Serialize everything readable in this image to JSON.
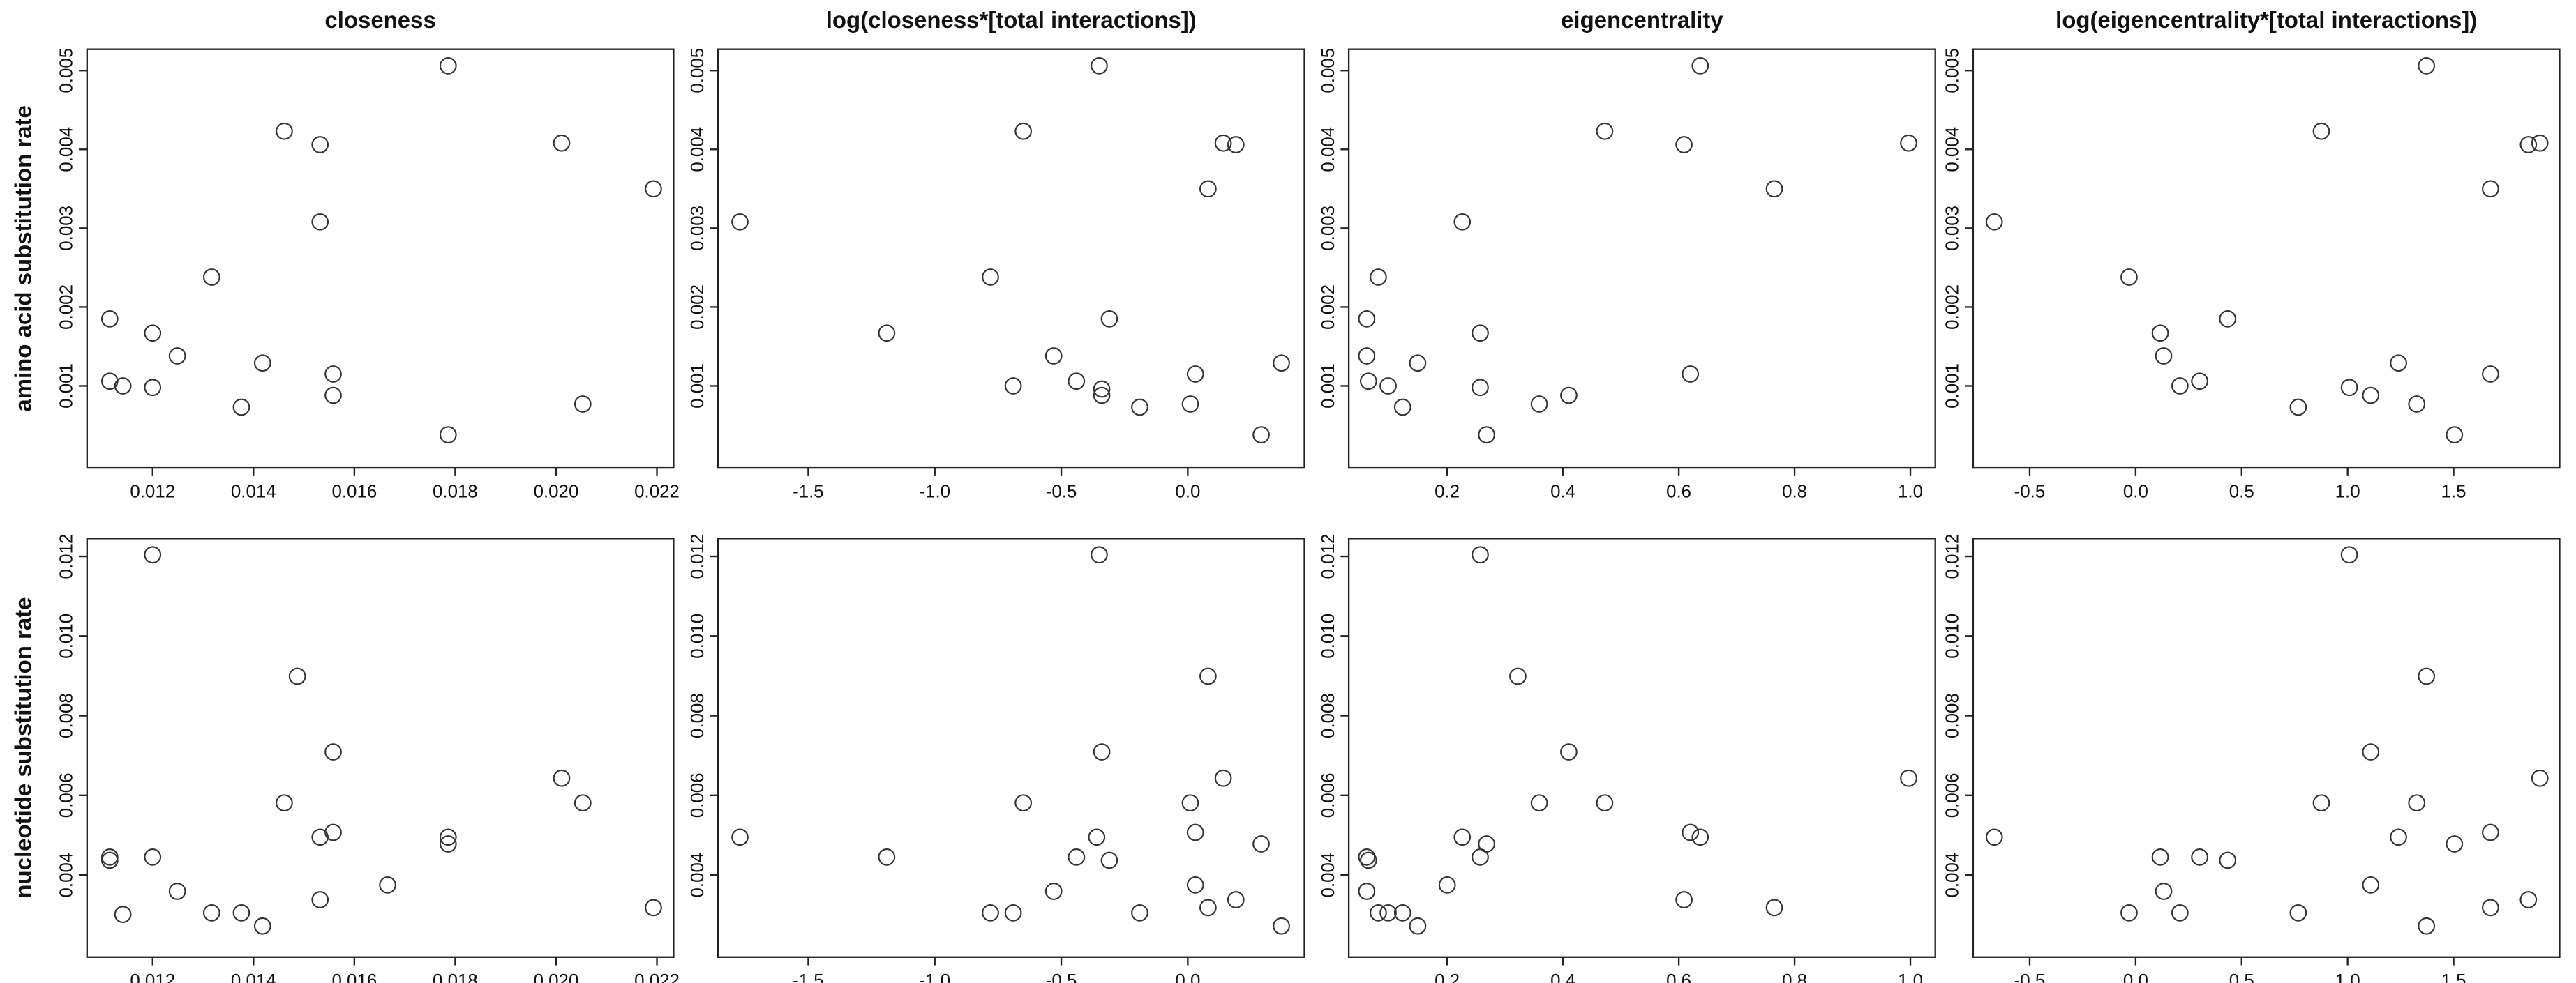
{
  "chart_data": [
    {
      "type": "scatter",
      "title": "closeness",
      "ylabel": "amino acid substitution rate",
      "x": [
        0.01115,
        0.01115,
        0.01141,
        0.012,
        0.012,
        0.01249,
        0.01317,
        0.01376,
        0.01418,
        0.01461,
        0.01532,
        0.01532,
        0.01558,
        0.01558,
        0.01786,
        0.01786,
        0.02011,
        0.02053,
        0.02193
      ],
      "values": [
        0.00185,
        0.00106,
        0.001,
        0.00167,
        0.00098,
        0.00138,
        0.00238,
        0.00073,
        0.00129,
        0.00423,
        0.00406,
        0.00308,
        0.00115,
        0.00088,
        0.00506,
        0.00038,
        0.00408,
        0.00077,
        0.0035
      ],
      "xlim": [
        0.0107,
        0.02233
      ],
      "ylim": [
        -4e-05,
        0.00527
      ],
      "xticks": [
        0.012,
        0.014,
        0.016,
        0.018,
        {
          "value": 0.02,
          "label": "0.020"
        },
        0.022
      ],
      "yticks": [
        0.001,
        0.002,
        0.003,
        0.004,
        0.005
      ]
    },
    {
      "type": "scatter",
      "title": "log(closeness*[total interactions])",
      "x": [
        -1.77,
        -1.19,
        -0.78,
        -0.69,
        -0.65,
        -0.53,
        -0.44,
        -0.34,
        -0.34,
        -0.31,
        -0.19,
        -0.35,
        0.01,
        0.03,
        0.08,
        0.14,
        0.19,
        0.29,
        0.37
      ],
      "values": [
        0.00308,
        0.00167,
        0.00238,
        0.001,
        0.00423,
        0.00138,
        0.00106,
        0.00096,
        0.00088,
        0.00185,
        0.00073,
        0.00506,
        0.00077,
        0.00115,
        0.0035,
        0.00408,
        0.00406,
        0.00038,
        0.00129
      ],
      "xlim": [
        -1.857,
        0.461
      ],
      "ylim": [
        -4e-05,
        0.00527
      ],
      "xticks": [
        -1.5,
        {
          "value": -1,
          "label": "-1.0"
        },
        -0.5,
        {
          "value": 0,
          "label": "0.0"
        }
      ],
      "yticks": [
        0.001,
        0.002,
        0.003,
        0.004,
        0.005
      ]
    },
    {
      "type": "scatter",
      "title": "eigencentrality",
      "x": [
        0.061,
        0.061,
        0.064,
        0.081,
        0.098,
        0.123,
        0.149,
        0.226,
        0.257,
        0.257,
        0.268,
        0.359,
        0.41,
        0.472,
        0.609,
        0.62,
        0.637,
        0.765,
        0.997
      ],
      "values": [
        0.00185,
        0.00138,
        0.00106,
        0.00238,
        0.001,
        0.00073,
        0.00129,
        0.00308,
        0.00167,
        0.00098,
        0.00038,
        0.00077,
        0.00088,
        0.00423,
        0.00406,
        0.00115,
        0.00506,
        0.0035,
        0.00408
      ],
      "xlim": [
        0.03,
        1.043
      ],
      "ylim": [
        -4e-05,
        0.00527
      ],
      "xticks": [
        0.2,
        0.4,
        0.6,
        0.8,
        {
          "value": 1,
          "label": "1.0"
        }
      ],
      "yticks": [
        0.001,
        0.002,
        0.003,
        0.004,
        0.005
      ]
    },
    {
      "type": "scatter",
      "title": "log(eigencentrality*[total interactions])",
      "x": [
        -0.667,
        -0.031,
        0.116,
        0.132,
        0.209,
        0.302,
        0.434,
        0.767,
        0.876,
        1.008,
        1.109,
        1.24,
        1.372,
        1.326,
        1.504,
        1.674,
        1.674,
        1.853,
        1.907
      ],
      "values": [
        0.00308,
        0.00238,
        0.00167,
        0.00138,
        0.001,
        0.00106,
        0.00185,
        0.00073,
        0.00423,
        0.00098,
        0.00088,
        0.00129,
        0.00506,
        0.00077,
        0.00038,
        0.0035,
        0.00115,
        0.00406,
        0.00408
      ],
      "xlim": [
        -0.767,
        2.0
      ],
      "ylim": [
        -4e-05,
        0.00527
      ],
      "xticks": [
        -0.5,
        {
          "value": 0,
          "label": "0.0"
        },
        0.5,
        {
          "value": 1,
          "label": "1.0"
        },
        1.5
      ],
      "yticks": [
        0.001,
        0.002,
        0.003,
        0.004,
        0.005
      ]
    },
    {
      "type": "scatter",
      "ylabel": "nucleotide substitution rate",
      "x": [
        0.01115,
        0.01115,
        0.01141,
        0.012,
        0.012,
        0.01249,
        0.01317,
        0.01376,
        0.01418,
        0.01461,
        0.01487,
        0.01532,
        0.01532,
        0.01558,
        0.01558,
        0.01666,
        0.01786,
        0.01786,
        0.02011,
        0.02053,
        0.02193
      ],
      "values": [
        0.00445,
        0.00437,
        0.00301,
        0.00445,
        0.01204,
        0.00359,
        0.00305,
        0.00305,
        0.00272,
        0.00581,
        0.00899,
        0.00495,
        0.00338,
        0.00507,
        0.00709,
        0.00375,
        0.00495,
        0.00478,
        0.00643,
        0.00581,
        0.00318
      ],
      "xlim": [
        0.0107,
        0.02233
      ],
      "ylim": [
        0.00194,
        0.01245
      ],
      "xticks": [
        0.012,
        0.014,
        0.016,
        0.018,
        {
          "value": 0.02,
          "label": "0.020"
        },
        0.022
      ],
      "yticks": [
        0.004,
        0.006,
        0.008,
        {
          "value": 0.01,
          "label": "0.010"
        },
        0.012
      ]
    },
    {
      "type": "scatter",
      "x": [
        -1.77,
        -1.19,
        -0.78,
        -0.69,
        -0.65,
        -0.53,
        -0.44,
        -0.35,
        -0.34,
        -0.36,
        -0.31,
        -0.19,
        0.01,
        0.03,
        0.03,
        0.08,
        0.08,
        0.14,
        0.19,
        0.29,
        0.37
      ],
      "values": [
        0.00495,
        0.00445,
        0.00305,
        0.00305,
        0.00581,
        0.00359,
        0.00445,
        0.01204,
        0.00709,
        0.00495,
        0.00437,
        0.00305,
        0.00581,
        0.00507,
        0.00375,
        0.00318,
        0.00899,
        0.00643,
        0.00338,
        0.00478,
        0.00272
      ],
      "xlim": [
        -1.857,
        0.461
      ],
      "ylim": [
        0.00194,
        0.01245
      ],
      "xticks": [
        -1.5,
        {
          "value": -1,
          "label": "-1.0"
        },
        -0.5,
        {
          "value": 0,
          "label": "0.0"
        }
      ],
      "yticks": [
        0.004,
        0.006,
        0.008,
        {
          "value": 0.01,
          "label": "0.010"
        },
        0.012
      ]
    },
    {
      "type": "scatter",
      "x": [
        0.061,
        0.064,
        0.061,
        0.081,
        0.098,
        0.123,
        0.149,
        0.2,
        0.226,
        0.257,
        0.257,
        0.268,
        0.322,
        0.359,
        0.41,
        0.472,
        0.609,
        0.62,
        0.637,
        0.765,
        0.997
      ],
      "values": [
        0.00445,
        0.00437,
        0.00359,
        0.00305,
        0.00305,
        0.00305,
        0.00272,
        0.00375,
        0.00495,
        0.00445,
        0.01204,
        0.00478,
        0.00899,
        0.00581,
        0.00709,
        0.00581,
        0.00338,
        0.00507,
        0.00495,
        0.00318,
        0.00643
      ],
      "xlim": [
        0.03,
        1.043
      ],
      "ylim": [
        0.00194,
        0.01245
      ],
      "xticks": [
        0.2,
        0.4,
        0.6,
        0.8,
        {
          "value": 1,
          "label": "1.0"
        }
      ],
      "yticks": [
        0.004,
        0.006,
        0.008,
        {
          "value": 0.01,
          "label": "0.010"
        },
        0.012
      ]
    },
    {
      "type": "scatter",
      "x": [
        -0.667,
        -0.031,
        0.116,
        0.132,
        0.209,
        0.302,
        0.434,
        0.767,
        0.876,
        1.008,
        1.109,
        1.24,
        1.109,
        1.326,
        1.372,
        1.504,
        1.674,
        1.674,
        1.853,
        1.907,
        1.372
      ],
      "values": [
        0.00495,
        0.00305,
        0.00445,
        0.00359,
        0.00305,
        0.00445,
        0.00437,
        0.00305,
        0.00581,
        0.01204,
        0.00375,
        0.00495,
        0.00709,
        0.00581,
        0.00899,
        0.00478,
        0.00507,
        0.00318,
        0.00338,
        0.00643,
        0.00272
      ],
      "xlim": [
        -0.767,
        2.0
      ],
      "ylim": [
        0.00194,
        0.01245
      ],
      "xticks": [
        -0.5,
        {
          "value": 0,
          "label": "0.0"
        },
        0.5,
        {
          "value": 1,
          "label": "1.0"
        },
        1.5
      ],
      "yticks": [
        0.004,
        0.006,
        0.008,
        {
          "value": 0.01,
          "label": "0.010"
        },
        0.012
      ]
    }
  ]
}
